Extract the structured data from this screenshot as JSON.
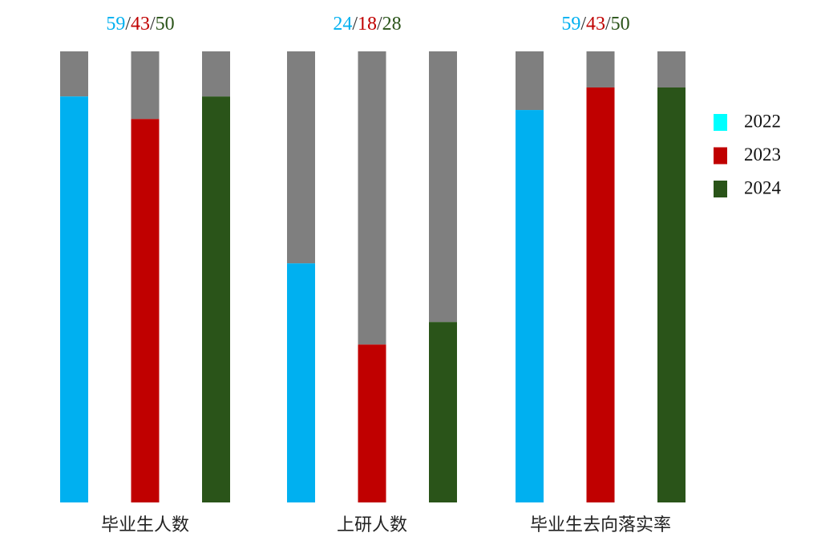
{
  "chart_data": {
    "type": "bar",
    "categories": [
      "毕业生人数",
      "上研人数",
      "毕业生去向落实率"
    ],
    "header_labels": [
      [
        "59",
        "/",
        "43",
        "/",
        "50"
      ],
      [
        "24",
        "/",
        "18",
        "/",
        "28"
      ],
      [
        "59",
        "/",
        "43",
        "/",
        "50"
      ]
    ],
    "series": [
      {
        "name": "2022",
        "color": "#00b0f0",
        "legend_color": "#00ffff",
        "values": [
          90,
          53,
          87
        ]
      },
      {
        "name": "2023",
        "color": "#c00000",
        "legend_color": "#c00000",
        "values": [
          85,
          35,
          92
        ]
      },
      {
        "name": "2024",
        "color": "#2a5419",
        "legend_color": "#2a5419",
        "values": [
          90,
          40,
          92
        ]
      }
    ],
    "remainder_color": "#7f7f7f",
    "ylim": [
      0,
      100
    ]
  }
}
